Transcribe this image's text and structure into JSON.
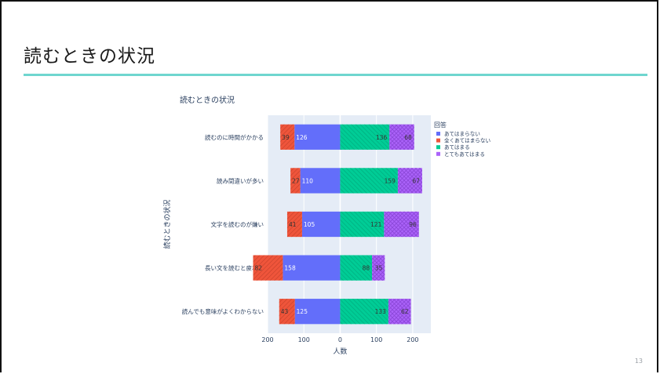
{
  "slide": {
    "title": "読むときの状況",
    "page_number": "13"
  },
  "chart_data": {
    "type": "bar",
    "orientation": "horizontal",
    "barmode": "relative-diverging",
    "title": "読むときの状況",
    "xlabel": "人数",
    "ylabel": "読むときの状況",
    "xlim": [
      -200,
      250
    ],
    "xticks": [
      {
        "value": -200,
        "label": "200"
      },
      {
        "value": -100,
        "label": "100"
      },
      {
        "value": 0,
        "label": "0"
      },
      {
        "value": 100,
        "label": "100"
      },
      {
        "value": 200,
        "label": "200"
      }
    ],
    "categories": [
      "読むのに時間がかかる",
      "読み間違いが多い",
      "文字を読むのが嫌い",
      "長い文を読むと疲れる",
      "読んでも意味がよくわからない"
    ],
    "legend_title": "回答",
    "legend_position": "top-right",
    "series": [
      {
        "name": "あてはまらない",
        "side": "negative",
        "color": "#636efa",
        "pattern": "none",
        "values": [
          126,
          110,
          105,
          158,
          125
        ]
      },
      {
        "name": "全くあてはまらない",
        "side": "negative",
        "color": "#ef553b",
        "pattern": "hatch-right",
        "values": [
          39,
          27,
          41,
          82,
          43
        ]
      },
      {
        "name": "あてはまる",
        "side": "positive",
        "color": "#00cc96",
        "pattern": "hatch-left",
        "values": [
          136,
          159,
          121,
          88,
          133
        ]
      },
      {
        "name": "とてもあてはまる",
        "side": "positive",
        "color": "#ab63fa",
        "pattern": "crosshatch",
        "values": [
          68,
          67,
          96,
          35,
          62
        ]
      }
    ],
    "plot_background": "#e5ecf6",
    "grid": true
  }
}
